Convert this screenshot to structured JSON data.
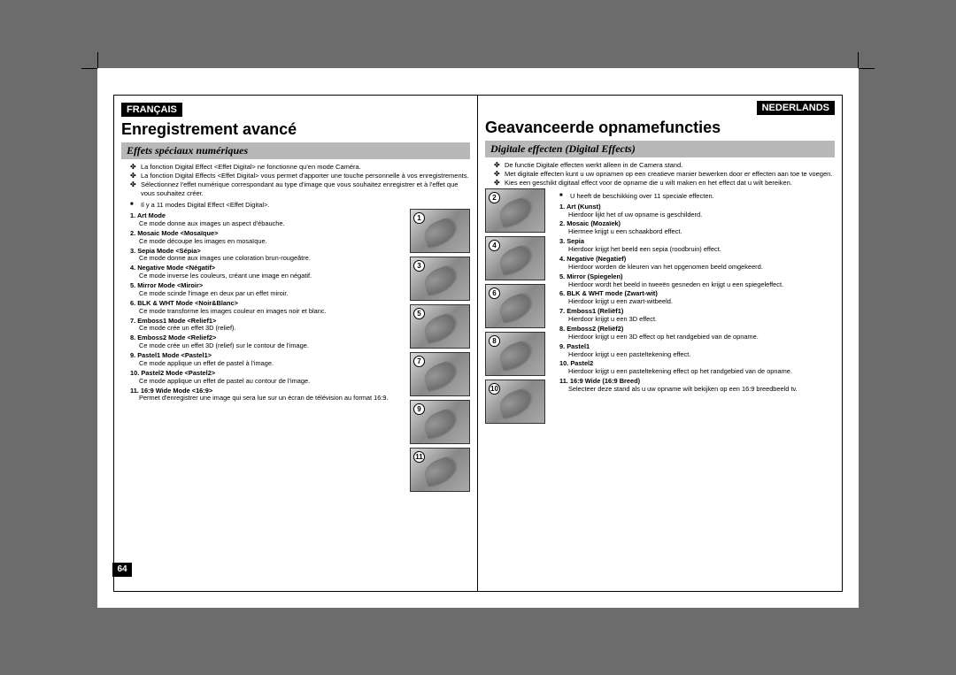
{
  "page_number": "64",
  "thumbnails": [
    "1",
    "2",
    "3",
    "4",
    "5",
    "6",
    "7",
    "8",
    "9",
    "10",
    "11"
  ],
  "left": {
    "lang": "FRANÇAIS",
    "title": "Enregistrement avancé",
    "subtitle": "Effets spéciaux numériques",
    "intro": [
      "La fonction Digital Effect <Effet Digital> ne fonctionne qu'en mode Caméra.",
      "La fonction Digital Effects <Effet Digital> vous permet d'apporter une touche personnelle à vos enregistrements.",
      "Sélectionnez l'effet numérique correspondant au type d'image que vous souhaitez enregistrer et à l'effet que vous souhaitez créer."
    ],
    "note": "Il y a 11 modes Digital Effect <Effet Digital>.",
    "effects": [
      {
        "t": "1. Art Mode",
        "d": "Ce mode donne aux images un aspect d'ébauche."
      },
      {
        "t": "2. Mosaic Mode <Mosaïque>",
        "d": "Ce mode découpe les images en mosaïque."
      },
      {
        "t": "3. Sepia Mode <Sépia>",
        "d": "Ce mode donne aux images une coloration brun-rougeâtre."
      },
      {
        "t": "4. Negative Mode <Négatif>",
        "d": "Ce mode inverse les couleurs, créant une image en négatif."
      },
      {
        "t": "5. Mirror Mode <Miroir>",
        "d": "Ce mode scinde l'image en deux par un effet miroir."
      },
      {
        "t": "6. BLK & WHT Mode <Noir&Blanc>",
        "d": "Ce mode transforme les images couleur en images noir et blanc."
      },
      {
        "t": "7. Emboss1 Mode <Relief1>",
        "d": "Ce mode crée un effet 3D (relief)."
      },
      {
        "t": "8. Emboss2 Mode <Relief2>",
        "d": "Ce mode crée un effet 3D (relief) sur le contour de l'image."
      },
      {
        "t": "9. Pastel1 Mode <Pastel1>",
        "d": "Ce mode applique un effet de pastel à l'image."
      },
      {
        "t": "10. Pastel2 Mode <Pastel2>",
        "d": "Ce mode applique un effet de pastel au contour de l'image."
      },
      {
        "t": "11. 16:9 Wide Mode <16:9>",
        "d": "Permet d'enregistrer une image qui sera lue sur un écran de télévision au format 16:9."
      }
    ]
  },
  "right": {
    "lang": "NEDERLANDS",
    "title": "Geavanceerde opnamefuncties",
    "subtitle": "Digitale effecten (Digital Effects)",
    "intro": [
      "De functie Digitale effecten werkt alleen in de Camera stand.",
      "Met digitale effecten kunt u uw opnamen op een creatieve manier bewerken door er effecten aan toe te voegen.",
      "Kies een geschikt digitaal effect voor de opname die u wilt maken en het effect dat u wilt bereiken."
    ],
    "note": "U heeft de beschikking over 11 speciale effecten.",
    "effects": [
      {
        "t": "1. Art (Kunst)",
        "d": "Hierdoor lijkt het of uw opname is geschilderd."
      },
      {
        "t": "2. Mosaic (Mozaïek)",
        "d": "Hiermee krijgt u een schaakbord effect."
      },
      {
        "t": "3. Sepia",
        "d": "Hierdoor krijgt het beeld een sepia (roodbruin) effect."
      },
      {
        "t": "4. Negative (Negatief)",
        "d": "Hierdoor worden de kleuren van het opgenomen beeld omgekeerd."
      },
      {
        "t": "5. Mirror (Spiegelen)",
        "d": "Hierdoor wordt het beeld in tweeën gesneden en krijgt u een spiegeleffect."
      },
      {
        "t": "6. BLK & WHT mode (Zwart-wit)",
        "d": "Hierdoor krijgt u een zwart-witbeeld."
      },
      {
        "t": "7. Emboss1 (Reliëf1)",
        "d": "Hierdoor krijgt u een 3D effect."
      },
      {
        "t": "8. Emboss2 (Reliëf2)",
        "d": "Hierdoor krijgt u een 3D effect op het randgebied van de opname."
      },
      {
        "t": "9. Pastel1",
        "d": "Hierdoor krijgt u een pasteltekening effect."
      },
      {
        "t": "10. Pastel2",
        "d": "Hierdoor krijgt u een pasteltekening effect op het randgebied van de opname."
      },
      {
        "t": "11. 16:9 Wide (16:9 Breed)",
        "d": "Selecteer deze stand als u uw opname wilt bekijken op een 16:9 breedbeeld tv."
      }
    ]
  }
}
